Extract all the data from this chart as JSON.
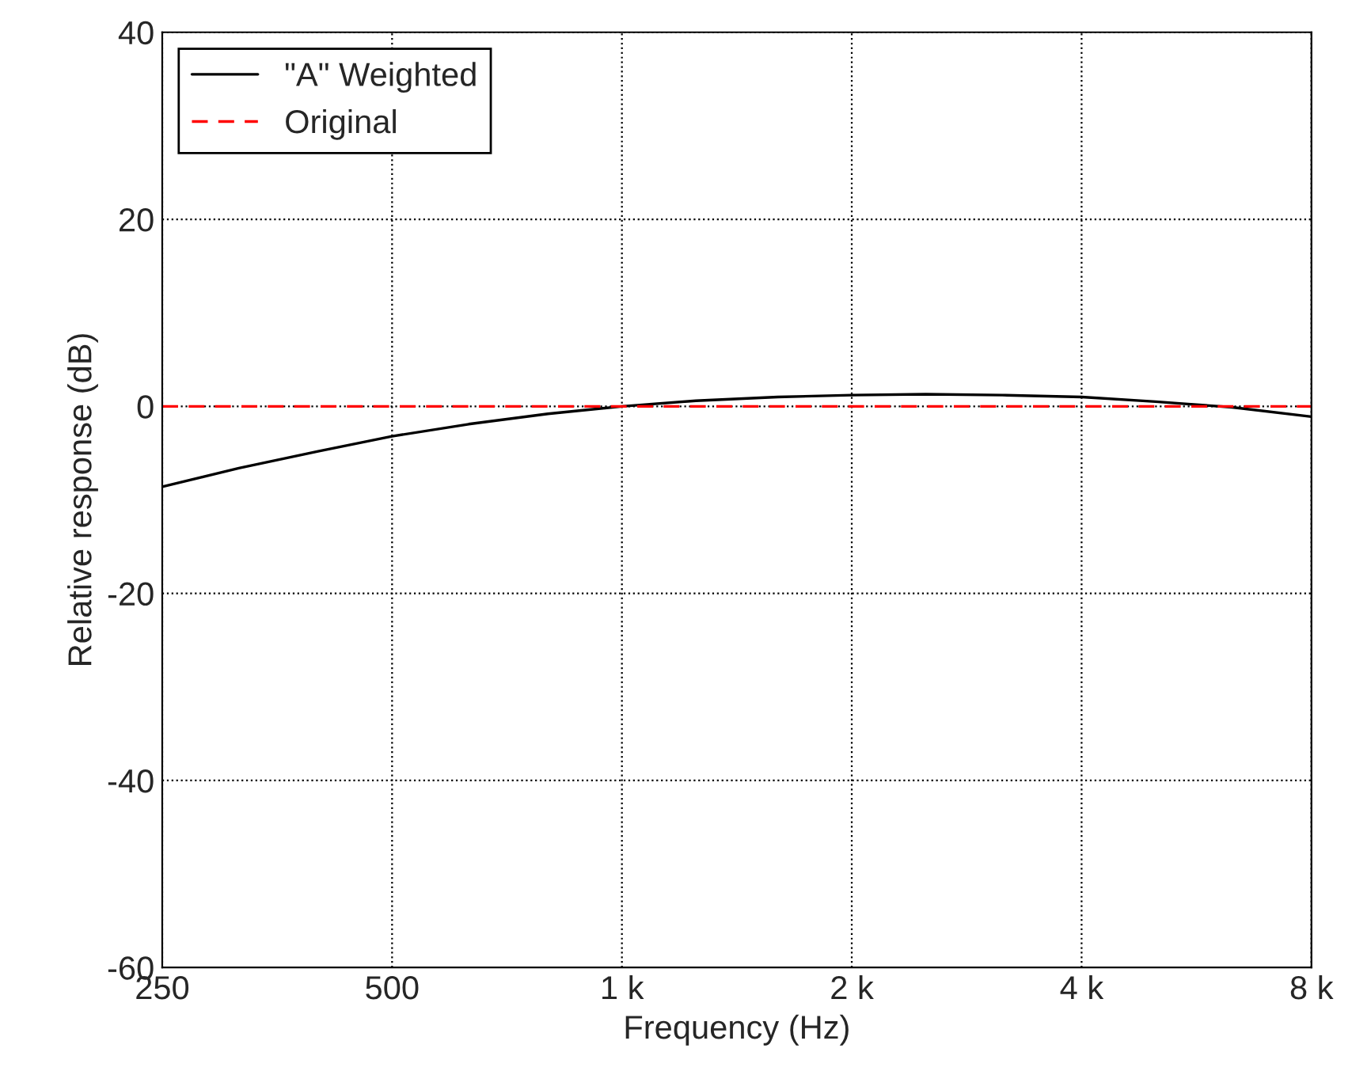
{
  "chart_data": {
    "type": "line",
    "xlabel": "Frequency (Hz)",
    "ylabel": "Relative response (dB)",
    "x": [
      250,
      315,
      400,
      500,
      630,
      800,
      1000,
      1250,
      1600,
      2000,
      2500,
      3150,
      4000,
      5000,
      6300,
      8000
    ],
    "series": [
      {
        "name": "\"A\" Weighted",
        "color": "#000000",
        "line_style": "solid",
        "values": [
          -8.6,
          -6.6,
          -4.8,
          -3.2,
          -1.9,
          -0.8,
          0,
          0.6,
          1.0,
          1.2,
          1.3,
          1.2,
          1.0,
          0.5,
          -0.1,
          -1.1
        ]
      },
      {
        "name": "Original",
        "color": "#ff0000",
        "line_style": "dashed",
        "values": [
          0,
          0,
          0,
          0,
          0,
          0,
          0,
          0,
          0,
          0,
          0,
          0,
          0,
          0,
          0,
          0
        ]
      }
    ],
    "log": "x",
    "xlim": [
      250,
      8000
    ],
    "xticks": [
      250,
      500,
      {
        "value": 1000,
        "label": "1 k"
      },
      {
        "value": 2000,
        "label": "2 k"
      },
      {
        "value": 4000,
        "label": "4 k"
      },
      {
        "value": 8000,
        "label": "8 k"
      }
    ],
    "ylim": [
      -60,
      40
    ],
    "yticks": [
      -60,
      -40,
      -20,
      0,
      20,
      40
    ],
    "grid": true,
    "legend": "top left"
  }
}
